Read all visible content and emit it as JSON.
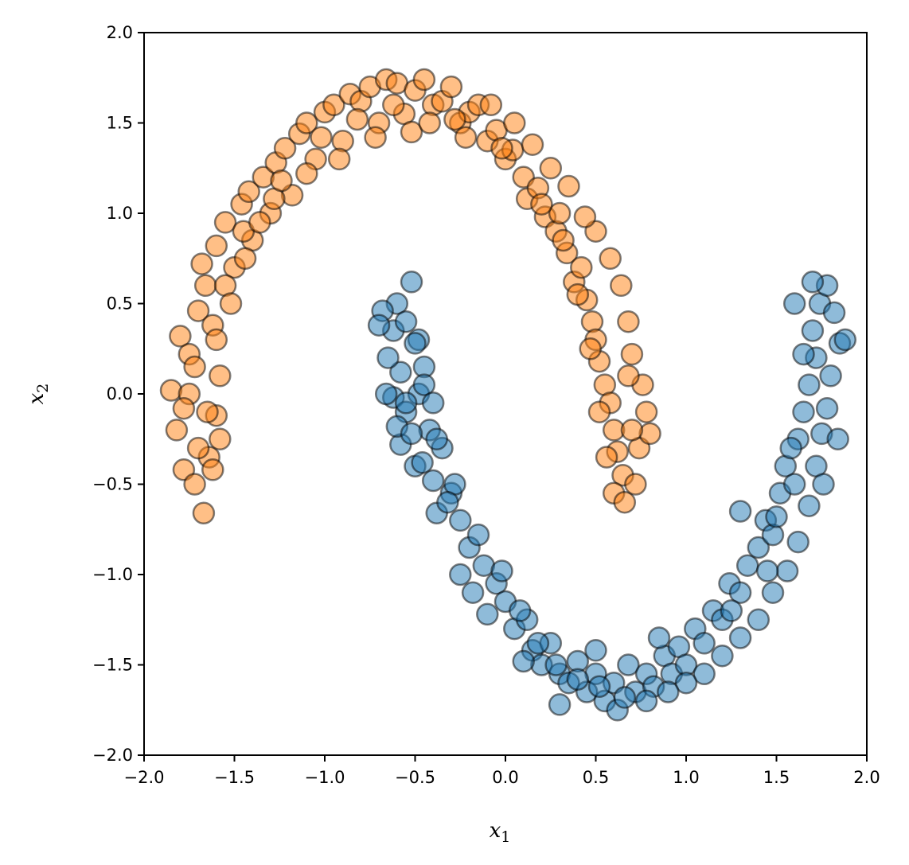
{
  "chart_data": {
    "type": "scatter",
    "title": "",
    "xlabel": "x",
    "xlabel_sub": "1",
    "ylabel": "x",
    "ylabel_sub": "2",
    "xlim": [
      -2.0,
      2.0
    ],
    "ylim": [
      -2.0,
      2.0
    ],
    "grid": false,
    "legend": "none",
    "x_ticks": [
      -2.0,
      -1.5,
      -1.0,
      -0.5,
      0.0,
      0.5,
      1.0,
      1.5,
      2.0
    ],
    "y_ticks": [
      -2.0,
      -1.5,
      -1.0,
      -0.5,
      0.0,
      0.5,
      1.0,
      1.5,
      2.0
    ],
    "x_tick_labels": [
      "−2.0",
      "−1.5",
      "−1.0",
      "−0.5",
      "0.0",
      "0.5",
      "1.0",
      "1.5",
      "2.0"
    ],
    "y_tick_labels": [
      "−2.0",
      "−1.5",
      "−1.0",
      "−0.5",
      "0.0",
      "0.5",
      "1.0",
      "1.5",
      "2.0"
    ],
    "marker_alpha": 0.5,
    "marker_edge_color": "#000000",
    "series": [
      {
        "color": "#ff7f0e",
        "description_shape": "upper moon (arc) centered near (-0.5, 0.2)",
        "points": [
          [
            -1.85,
            0.02
          ],
          [
            -1.82,
            -0.2
          ],
          [
            -1.78,
            -0.42
          ],
          [
            -1.72,
            -0.5
          ],
          [
            -1.67,
            -0.66
          ],
          [
            -1.64,
            -0.35
          ],
          [
            -1.6,
            -0.12
          ],
          [
            -1.58,
            0.1
          ],
          [
            -1.8,
            0.32
          ],
          [
            -1.75,
            0.22
          ],
          [
            -1.7,
            0.46
          ],
          [
            -1.66,
            0.6
          ],
          [
            -1.62,
            0.38
          ],
          [
            -1.68,
            0.72
          ],
          [
            -1.6,
            0.82
          ],
          [
            -1.55,
            0.95
          ],
          [
            -1.5,
            0.7
          ],
          [
            -1.46,
            1.05
          ],
          [
            -1.42,
            1.12
          ],
          [
            -1.4,
            0.85
          ],
          [
            -1.34,
            1.2
          ],
          [
            -1.3,
            1.0
          ],
          [
            -1.27,
            1.28
          ],
          [
            -1.22,
            1.36
          ],
          [
            -1.18,
            1.1
          ],
          [
            -1.14,
            1.44
          ],
          [
            -1.1,
            1.5
          ],
          [
            -1.05,
            1.3
          ],
          [
            -1.0,
            1.56
          ],
          [
            -0.95,
            1.6
          ],
          [
            -0.9,
            1.4
          ],
          [
            -0.86,
            1.66
          ],
          [
            -0.8,
            1.62
          ],
          [
            -0.75,
            1.7
          ],
          [
            -0.7,
            1.5
          ],
          [
            -0.66,
            1.74
          ],
          [
            -0.6,
            1.72
          ],
          [
            -0.56,
            1.55
          ],
          [
            -0.5,
            1.68
          ],
          [
            -0.45,
            1.74
          ],
          [
            -0.4,
            1.6
          ],
          [
            -0.35,
            1.62
          ],
          [
            -0.3,
            1.7
          ],
          [
            -0.25,
            1.5
          ],
          [
            -0.2,
            1.56
          ],
          [
            -0.15,
            1.6
          ],
          [
            -0.1,
            1.4
          ],
          [
            -0.05,
            1.46
          ],
          [
            0.0,
            1.3
          ],
          [
            0.04,
            1.35
          ],
          [
            0.1,
            1.2
          ],
          [
            0.12,
            1.08
          ],
          [
            0.18,
            1.14
          ],
          [
            0.22,
            0.98
          ],
          [
            0.28,
            0.9
          ],
          [
            0.3,
            1.0
          ],
          [
            0.34,
            0.78
          ],
          [
            0.38,
            0.62
          ],
          [
            0.42,
            0.7
          ],
          [
            0.45,
            0.52
          ],
          [
            0.48,
            0.4
          ],
          [
            0.5,
            0.3
          ],
          [
            0.52,
            0.18
          ],
          [
            0.55,
            0.05
          ],
          [
            0.58,
            -0.05
          ],
          [
            0.6,
            -0.2
          ],
          [
            0.62,
            -0.32
          ],
          [
            0.65,
            -0.45
          ],
          [
            0.6,
            -0.55
          ],
          [
            0.66,
            -0.6
          ],
          [
            0.72,
            -0.5
          ],
          [
            0.74,
            -0.3
          ],
          [
            0.78,
            -0.1
          ],
          [
            0.8,
            -0.22
          ],
          [
            0.76,
            0.05
          ],
          [
            0.7,
            0.22
          ],
          [
            0.68,
            0.4
          ],
          [
            0.64,
            0.6
          ],
          [
            0.58,
            0.75
          ],
          [
            0.5,
            0.9
          ],
          [
            0.44,
            0.98
          ],
          [
            0.35,
            1.15
          ],
          [
            0.25,
            1.25
          ],
          [
            0.15,
            1.38
          ],
          [
            0.05,
            1.5
          ],
          [
            -0.08,
            1.6
          ],
          [
            -0.28,
            1.52
          ],
          [
            -0.52,
            1.45
          ],
          [
            -0.72,
            1.42
          ],
          [
            -0.92,
            1.3
          ],
          [
            -1.1,
            1.22
          ],
          [
            -1.28,
            1.08
          ],
          [
            -1.45,
            0.9
          ],
          [
            -1.55,
            0.6
          ],
          [
            -1.6,
            0.3
          ],
          [
            -1.65,
            -0.1
          ],
          [
            -1.7,
            -0.3
          ],
          [
            -1.75,
            0.0
          ],
          [
            -1.72,
            0.15
          ],
          [
            -1.78,
            -0.08
          ],
          [
            -1.62,
            -0.42
          ],
          [
            -1.58,
            -0.25
          ],
          [
            -1.52,
            0.5
          ],
          [
            -1.44,
            0.75
          ],
          [
            -1.36,
            0.95
          ],
          [
            -1.24,
            1.18
          ],
          [
            -1.02,
            1.42
          ],
          [
            -0.82,
            1.52
          ],
          [
            -0.62,
            1.6
          ],
          [
            -0.42,
            1.5
          ],
          [
            -0.22,
            1.42
          ],
          [
            -0.02,
            1.36
          ],
          [
            0.2,
            1.05
          ],
          [
            0.32,
            0.85
          ],
          [
            0.4,
            0.55
          ],
          [
            0.47,
            0.25
          ],
          [
            0.52,
            -0.1
          ],
          [
            0.56,
            -0.35
          ],
          [
            0.7,
            -0.2
          ],
          [
            0.68,
            0.1
          ]
        ]
      },
      {
        "color": "#1f77b4",
        "description_shape": "lower moon (arc) centered near (0.5, -0.2)",
        "points": [
          [
            -0.52,
            0.62
          ],
          [
            -0.6,
            0.5
          ],
          [
            -0.68,
            0.46
          ],
          [
            -0.62,
            0.35
          ],
          [
            -0.55,
            0.4
          ],
          [
            -0.48,
            0.3
          ],
          [
            -0.45,
            0.15
          ],
          [
            -0.58,
            0.12
          ],
          [
            -0.65,
            0.2
          ],
          [
            -0.62,
            -0.02
          ],
          [
            -0.55,
            -0.1
          ],
          [
            -0.48,
            0.0
          ],
          [
            -0.42,
            -0.2
          ],
          [
            -0.58,
            -0.28
          ],
          [
            -0.5,
            -0.4
          ],
          [
            -0.4,
            -0.48
          ],
          [
            -0.35,
            -0.3
          ],
          [
            -0.3,
            -0.55
          ],
          [
            -0.25,
            -0.7
          ],
          [
            -0.38,
            -0.66
          ],
          [
            -0.2,
            -0.85
          ],
          [
            -0.12,
            -0.95
          ],
          [
            -0.25,
            -1.0
          ],
          [
            -0.05,
            -1.05
          ],
          [
            0.0,
            -1.15
          ],
          [
            -0.1,
            -1.22
          ],
          [
            0.05,
            -1.3
          ],
          [
            0.12,
            -1.25
          ],
          [
            0.15,
            -1.42
          ],
          [
            0.2,
            -1.5
          ],
          [
            0.25,
            -1.38
          ],
          [
            0.3,
            -1.55
          ],
          [
            0.35,
            -1.6
          ],
          [
            0.4,
            -1.48
          ],
          [
            0.45,
            -1.65
          ],
          [
            0.5,
            -1.55
          ],
          [
            0.55,
            -1.7
          ],
          [
            0.6,
            -1.6
          ],
          [
            0.62,
            -1.75
          ],
          [
            0.68,
            -1.5
          ],
          [
            0.72,
            -1.65
          ],
          [
            0.78,
            -1.55
          ],
          [
            0.82,
            -1.62
          ],
          [
            0.88,
            -1.45
          ],
          [
            0.92,
            -1.55
          ],
          [
            0.96,
            -1.4
          ],
          [
            1.0,
            -1.5
          ],
          [
            1.05,
            -1.3
          ],
          [
            1.1,
            -1.38
          ],
          [
            1.15,
            -1.2
          ],
          [
            1.2,
            -1.25
          ],
          [
            1.24,
            -1.05
          ],
          [
            1.3,
            -1.1
          ],
          [
            1.34,
            -0.95
          ],
          [
            1.4,
            -0.85
          ],
          [
            1.44,
            -0.7
          ],
          [
            1.48,
            -0.78
          ],
          [
            1.52,
            -0.55
          ],
          [
            1.55,
            -0.4
          ],
          [
            1.6,
            -0.5
          ],
          [
            1.62,
            -0.25
          ],
          [
            1.65,
            -0.1
          ],
          [
            1.68,
            0.05
          ],
          [
            1.72,
            0.2
          ],
          [
            1.7,
            0.35
          ],
          [
            1.74,
            0.5
          ],
          [
            1.78,
            0.6
          ],
          [
            1.82,
            0.45
          ],
          [
            1.85,
            0.28
          ],
          [
            1.8,
            0.1
          ],
          [
            1.78,
            -0.08
          ],
          [
            1.75,
            -0.22
          ],
          [
            1.72,
            -0.4
          ],
          [
            1.68,
            -0.62
          ],
          [
            1.62,
            -0.82
          ],
          [
            1.56,
            -0.98
          ],
          [
            1.48,
            -1.1
          ],
          [
            1.4,
            -1.25
          ],
          [
            1.3,
            -1.35
          ],
          [
            1.2,
            -1.45
          ],
          [
            1.1,
            -1.55
          ],
          [
            1.0,
            -1.6
          ],
          [
            0.9,
            -1.65
          ],
          [
            0.78,
            -1.7
          ],
          [
            0.66,
            -1.68
          ],
          [
            0.52,
            -1.62
          ],
          [
            0.4,
            -1.58
          ],
          [
            0.28,
            -1.5
          ],
          [
            0.18,
            -1.38
          ],
          [
            0.08,
            -1.2
          ],
          [
            -0.02,
            -0.98
          ],
          [
            -0.15,
            -0.78
          ],
          [
            -0.28,
            -0.5
          ],
          [
            -0.38,
            -0.25
          ],
          [
            -0.45,
            0.05
          ],
          [
            -0.5,
            0.28
          ],
          [
            -0.7,
            0.38
          ],
          [
            -0.66,
            0.0
          ],
          [
            -0.6,
            -0.18
          ],
          [
            -0.52,
            -0.22
          ],
          [
            -0.46,
            -0.38
          ],
          [
            -0.32,
            -0.6
          ],
          [
            -0.18,
            -1.1
          ],
          [
            0.1,
            -1.48
          ],
          [
            0.5,
            -1.42
          ],
          [
            0.85,
            -1.35
          ],
          [
            1.25,
            -1.2
          ],
          [
            1.5,
            -0.68
          ],
          [
            1.58,
            -0.3
          ],
          [
            1.65,
            0.22
          ],
          [
            1.6,
            0.5
          ],
          [
            1.7,
            0.62
          ],
          [
            1.88,
            0.3
          ],
          [
            1.84,
            -0.25
          ],
          [
            1.76,
            -0.5
          ],
          [
            1.3,
            -0.65
          ],
          [
            1.45,
            -0.98
          ],
          [
            0.3,
            -1.72
          ],
          [
            -0.55,
            -0.05
          ],
          [
            -0.4,
            -0.05
          ]
        ]
      }
    ]
  }
}
